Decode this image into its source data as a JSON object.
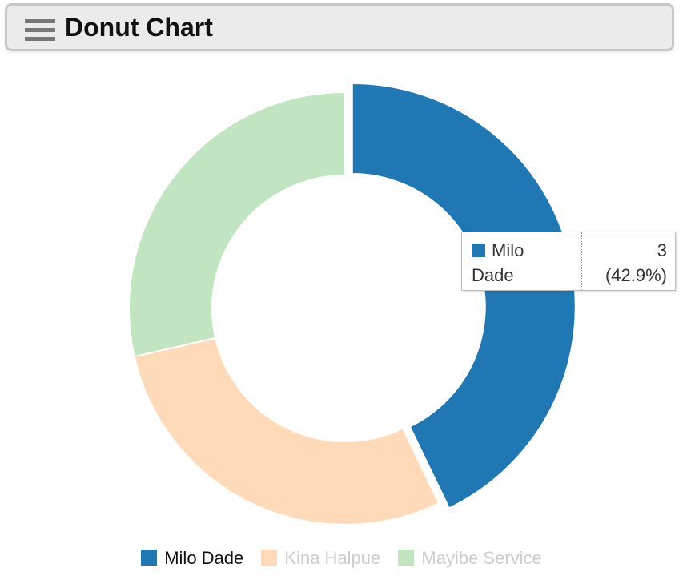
{
  "header": {
    "title": "Donut Chart",
    "menu_icon": "hamburger-menu-icon"
  },
  "chart_data": {
    "type": "pie",
    "variant": "donut",
    "labels": [
      "Milo Dade",
      "Kina Halpue",
      "Mayibe Service"
    ],
    "values": [
      3,
      2,
      2
    ],
    "colors": [
      "#1f77b4",
      "#ffdab9",
      "#c1e4c1"
    ],
    "highlighted_index": 0,
    "legend_position": "bottom",
    "disabled_legend_color": "#cccccc",
    "active_legend_color": "#111111"
  },
  "tooltip": {
    "label_line1": "Milo",
    "label_line2": "Dade",
    "value": "3",
    "percent": "(42.9%)",
    "swatch_color": "#1f77b4"
  },
  "legend": {
    "items": [
      {
        "label": "Milo Dade",
        "color": "#1f77b4",
        "active": true
      },
      {
        "label": "Kina Halpue",
        "color": "#ffdab9",
        "active": false
      },
      {
        "label": "Mayibe Service",
        "color": "#c1e4c1",
        "active": false
      }
    ]
  }
}
